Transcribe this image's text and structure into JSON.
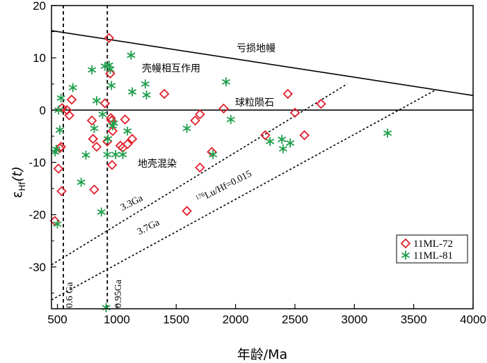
{
  "chart_data": {
    "type": "scatter",
    "xlabel": "年龄/Ma",
    "ylabel_main": "ε",
    "ylabel_sub": "Hf",
    "ylabel_tail": "(t)",
    "xlim": [
      450,
      4000
    ],
    "ylim": [
      -38,
      20
    ],
    "xticks": [
      500,
      1000,
      1500,
      2000,
      2500,
      3000,
      3500,
      4000
    ],
    "yticks": [
      20,
      10,
      0,
      -10,
      -20,
      -30
    ],
    "reference_lines": {
      "depleted_mantle": {
        "label": "亏损地幔",
        "from": [
          450,
          15.2
        ],
        "to": [
          4000,
          2.8
        ]
      },
      "chur": {
        "label": "球粒陨石",
        "y": 0
      },
      "evolution_3_3": {
        "label": "3.3Ga",
        "from": [
          450,
          -29.6
        ],
        "to": [
          2940,
          5.0
        ]
      },
      "evolution_3_7": {
        "label": "3.7Ga",
        "from": [
          450,
          -36.3
        ],
        "to": [
          3680,
          3.8
        ]
      },
      "age_0_6": {
        "label": "0.6 Ga",
        "x": 550
      },
      "age_0_95": {
        "label": "0.95Ga",
        "x": 920
      }
    },
    "annotations": {
      "crust_mantle": "壳幔相互作用",
      "crust_melt": "地壳混染",
      "lu_hf": "Lu/Hf=0.015",
      "lu_hf_sup1": "176",
      "lu_hf_sup2": "177"
    },
    "legend": {
      "position": "bottom-right"
    },
    "series": [
      {
        "name": "11ML-72",
        "marker": "diamond",
        "color": "#e0202b",
        "points": [
          [
            478,
            -21.2
          ],
          [
            508,
            -11.2
          ],
          [
            520,
            -7.3
          ],
          [
            530,
            -7.0
          ],
          [
            535,
            -15.5
          ],
          [
            540,
            0.4
          ],
          [
            580,
            0.0
          ],
          [
            600,
            -1.0
          ],
          [
            620,
            2.0
          ],
          [
            790,
            -2.0
          ],
          [
            800,
            -5.5
          ],
          [
            810,
            -15.2
          ],
          [
            830,
            -7.0
          ],
          [
            900,
            1.3
          ],
          [
            920,
            -6.0
          ],
          [
            935,
            13.8
          ],
          [
            945,
            7.0
          ],
          [
            950,
            -1.5
          ],
          [
            955,
            -2.0
          ],
          [
            960,
            -10.5
          ],
          [
            965,
            -4.0
          ],
          [
            1030,
            -6.8
          ],
          [
            1050,
            -7.2
          ],
          [
            1070,
            -1.8
          ],
          [
            1090,
            -6.5
          ],
          [
            1130,
            -5.5
          ],
          [
            1400,
            3.1
          ],
          [
            1590,
            -19.3
          ],
          [
            1660,
            -2.0
          ],
          [
            1700,
            -0.8
          ],
          [
            1700,
            -11.0
          ],
          [
            1800,
            -8.0
          ],
          [
            1900,
            0.3
          ],
          [
            2250,
            -4.8
          ],
          [
            2440,
            3.1
          ],
          [
            2500,
            -0.5
          ],
          [
            2580,
            -4.8
          ],
          [
            2720,
            1.2
          ]
        ]
      },
      {
        "name": "11ML-81",
        "marker": "asterisk",
        "color": "#1f9e4c",
        "points": [
          [
            480,
            -8.0
          ],
          [
            490,
            -7.5
          ],
          [
            500,
            -21.8
          ],
          [
            510,
            0.0
          ],
          [
            520,
            -3.8
          ],
          [
            530,
            2.3
          ],
          [
            630,
            4.3
          ],
          [
            700,
            -13.8
          ],
          [
            740,
            -8.6
          ],
          [
            790,
            7.7
          ],
          [
            810,
            -3.5
          ],
          [
            830,
            1.8
          ],
          [
            870,
            -19.5
          ],
          [
            880,
            -0.8
          ],
          [
            900,
            8.4
          ],
          [
            910,
            -37.8
          ],
          [
            920,
            -8.5
          ],
          [
            925,
            -5.5
          ],
          [
            935,
            8.6
          ],
          [
            945,
            7.8
          ],
          [
            955,
            4.7
          ],
          [
            965,
            -3.0
          ],
          [
            975,
            -2.5
          ],
          [
            990,
            -8.5
          ],
          [
            1050,
            -8.5
          ],
          [
            1090,
            -4.0
          ],
          [
            1120,
            10.5
          ],
          [
            1130,
            3.5
          ],
          [
            1240,
            5.0
          ],
          [
            1250,
            2.9
          ],
          [
            1590,
            -3.5
          ],
          [
            1810,
            -8.5
          ],
          [
            1920,
            5.4
          ],
          [
            1960,
            -1.8
          ],
          [
            2290,
            -6.0
          ],
          [
            2390,
            -5.6
          ],
          [
            2400,
            -7.4
          ],
          [
            2460,
            -6.3
          ],
          [
            3280,
            -4.4
          ]
        ]
      }
    ]
  }
}
